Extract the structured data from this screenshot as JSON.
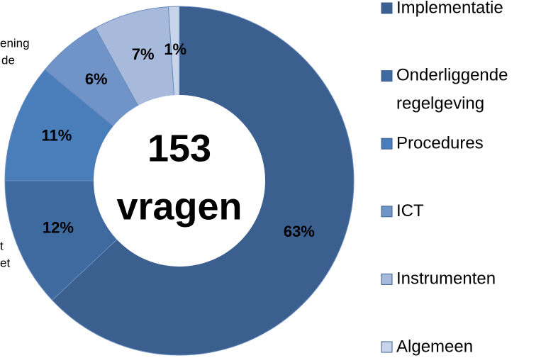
{
  "chart_data": {
    "type": "donut",
    "categories": [
      "Implementatie",
      "Onderliggende regelgeving",
      "Procedures",
      "ICT",
      "Instrumenten",
      "Algemeen"
    ],
    "values": [
      63,
      12,
      11,
      6,
      7,
      1
    ],
    "value_labels": [
      "63%",
      "12%",
      "11%",
      "6%",
      "7%",
      "1%"
    ],
    "colors": [
      "#3b5f8e",
      "#3e6aa0",
      "#4a7ebb",
      "#7194c8",
      "#a7badb",
      "#c8d4ea"
    ],
    "center_text": [
      "153",
      "vragen"
    ],
    "annotations": [
      "ening",
      "de",
      "t",
      "et"
    ],
    "legend": "right"
  }
}
